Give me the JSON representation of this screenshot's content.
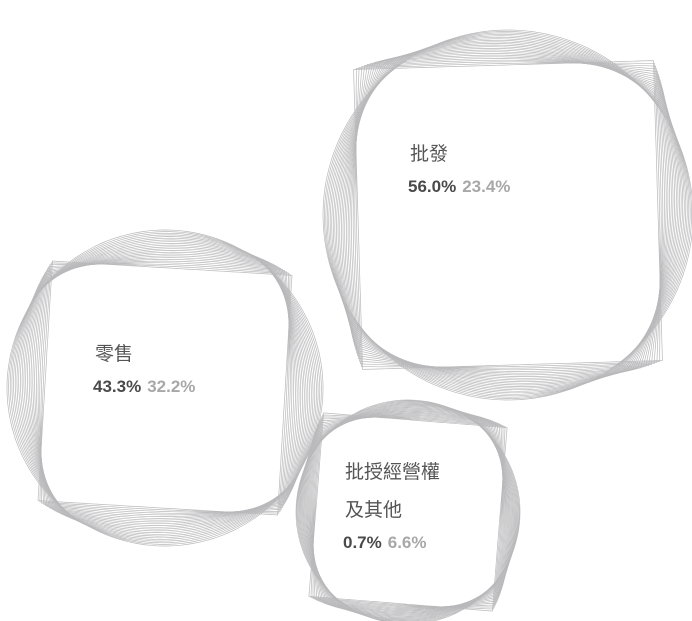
{
  "segments": [
    {
      "label": [
        "批發"
      ],
      "share_a": "56.0%",
      "share_b": "23.4%"
    },
    {
      "label": [
        "零售"
      ],
      "share_a": "43.3%",
      "share_b": "32.2%"
    },
    {
      "label": [
        "批授經營權",
        "及其他"
      ],
      "share_a": "0.7%",
      "share_b": "6.6%"
    }
  ]
}
